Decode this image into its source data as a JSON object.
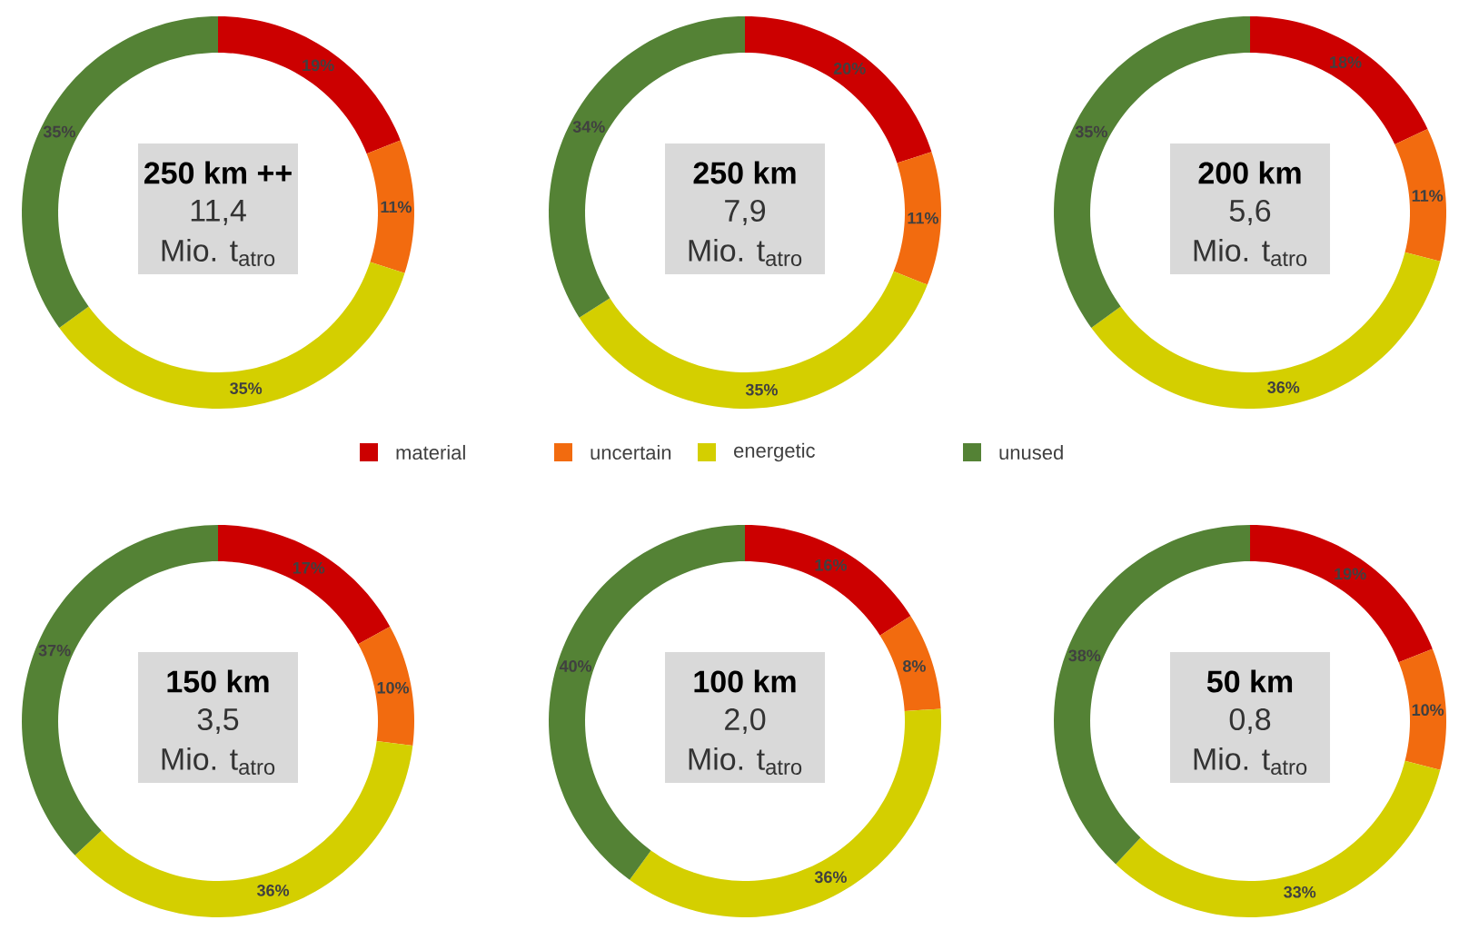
{
  "chart_data": [
    {
      "type": "donut",
      "title": "250 km ++",
      "subtitle": "11,4",
      "annotations": [
        "Mio. t$_{atro}$"
      ],
      "categories": [
        "material",
        "uncertain",
        "energetic",
        "unused"
      ],
      "values": [
        19,
        11,
        35,
        35
      ],
      "value_labels": [
        "19%",
        "11%",
        "35%",
        "35%"
      ],
      "colors": [
        "#cc0000",
        "#f26b0f",
        "#d4cf00",
        "#548235"
      ],
      "legend": "bottom"
    },
    {
      "type": "donut",
      "title": "250 km",
      "subtitle": "7,9",
      "annotations": [
        "Mio. t$_{atro}$"
      ],
      "categories": [
        null,
        null,
        null,
        null
      ],
      "values": [
        20,
        11,
        35,
        34
      ],
      "value_labels": [
        "20%",
        "11%",
        "35%",
        "34%"
      ],
      "colors": [
        "#cc0000",
        "#f26b0f",
        "#d4cf00",
        "#548235"
      ]
    },
    {
      "type": "donut",
      "title": "200 km",
      "subtitle": "5,6",
      "annotations": [
        "Mio. t$_{atro}$"
      ],
      "categories": [
        null,
        null,
        null,
        null
      ],
      "values": [
        18,
        11,
        36,
        35
      ],
      "value_labels": [
        "18%",
        "11%",
        "36%",
        "35%"
      ],
      "colors": [
        "#cc0000",
        "#f26b0f",
        "#d4cf00",
        "#548235"
      ]
    },
    {
      "type": "donut",
      "title": "150 km",
      "subtitle": "3,5",
      "annotations": [
        "Mio. t$_{atro}$"
      ],
      "categories": [
        null,
        null,
        null,
        null
      ],
      "values": [
        17,
        10,
        36,
        37
      ],
      "value_labels": [
        "17%",
        "10%",
        "36%",
        "37%"
      ],
      "colors": [
        "#cc0000",
        "#f26b0f",
        "#d4cf00",
        "#548235"
      ]
    },
    {
      "type": "donut",
      "title": "100 km",
      "subtitle": "2,0",
      "annotations": [
        "Mio. t$_{atro}$"
      ],
      "categories": [
        null,
        null,
        null,
        null
      ],
      "values": [
        16,
        8,
        36,
        40
      ],
      "value_labels": [
        "16%",
        "8%",
        "36%",
        "40%"
      ],
      "colors": [
        "#cc0000",
        "#f26b0f",
        "#d4cf00",
        "#548235"
      ]
    },
    {
      "type": "donut",
      "title": "50 km",
      "subtitle": "0,8",
      "annotations": [
        "Mio. t$_{atro}$"
      ],
      "categories": [
        null,
        null,
        null,
        null
      ],
      "values": [
        19,
        10,
        33,
        38
      ],
      "value_labels": [
        "19%",
        "10%",
        "33%",
        "38%"
      ],
      "colors": [
        "#cc0000",
        "#f26b0f",
        "#d4cf00",
        "#548235"
      ]
    }
  ]
}
